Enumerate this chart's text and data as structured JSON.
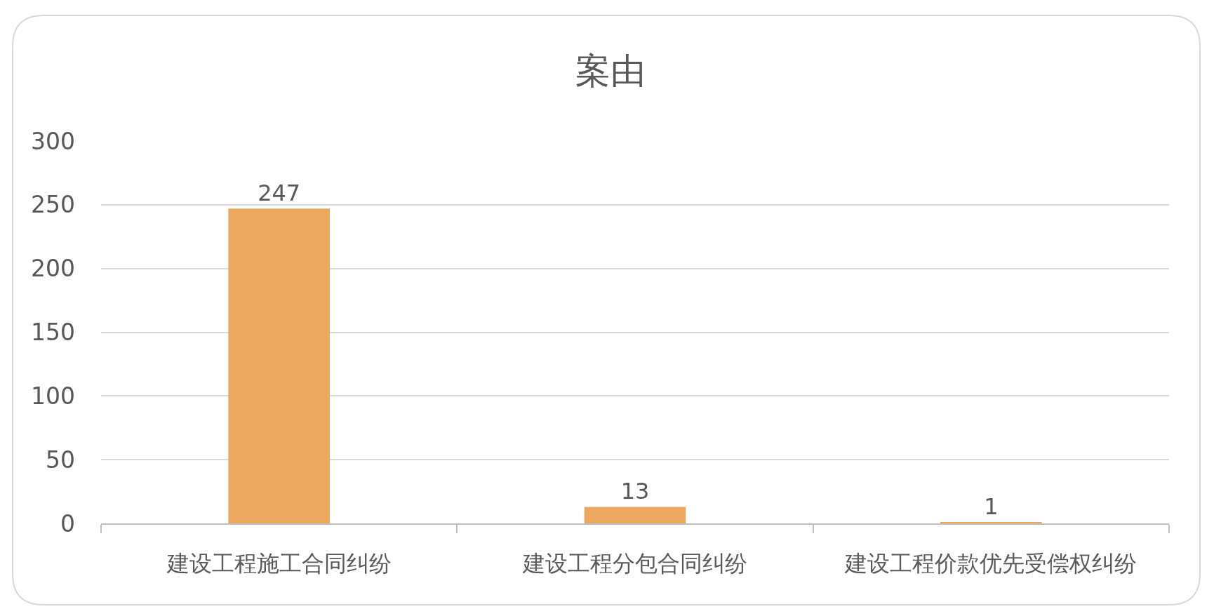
{
  "chart_data": {
    "type": "bar",
    "title": "案由",
    "categories": [
      "建设工程施工合同纠纷",
      "建设工程分包合同纠纷",
      "建设工程价款优先受偿权纠纷"
    ],
    "values": [
      247,
      13,
      1
    ],
    "color": "#eba85e",
    "ylim": [
      0,
      300
    ],
    "yticks": [
      0,
      50,
      100,
      150,
      200,
      250,
      300
    ],
    "grid": "y",
    "data_labels": true
  }
}
